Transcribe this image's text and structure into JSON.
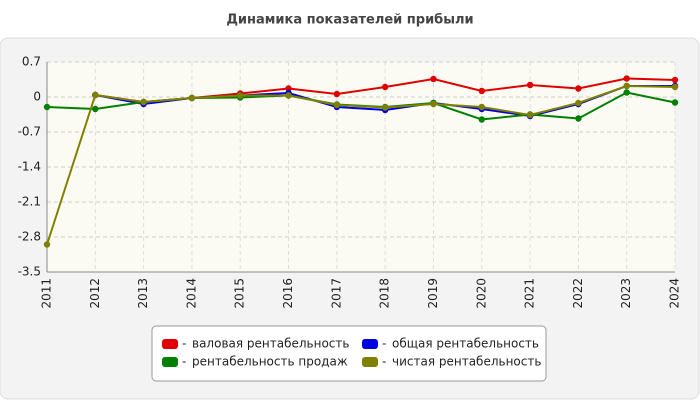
{
  "chart_data": {
    "type": "line",
    "title": "Динамика показателей прибыли",
    "categories": [
      "2011",
      "2012",
      "2013",
      "2014",
      "2015",
      "2016",
      "2017",
      "2018",
      "2019",
      "2020",
      "2021",
      "2022",
      "2023",
      "2024"
    ],
    "ylim": [
      -3.5,
      0.7
    ],
    "yticks": [
      0.7,
      0,
      -0.7,
      -1.4,
      -2.1,
      -2.8,
      -3.5
    ],
    "grid": true,
    "legend": "bottom",
    "series": [
      {
        "name": "валовая рентабельность",
        "color": "#e00000",
        "values": [
          null,
          0.04,
          -0.1,
          -0.02,
          0.07,
          0.17,
          0.06,
          0.2,
          0.36,
          0.12,
          0.24,
          0.17,
          0.37,
          0.34
        ]
      },
      {
        "name": "общая рентабельность",
        "color": "#0000e0",
        "values": [
          null,
          0.04,
          -0.14,
          -0.02,
          0.03,
          0.08,
          -0.2,
          -0.26,
          -0.12,
          -0.24,
          -0.38,
          -0.14,
          0.22,
          0.22
        ]
      },
      {
        "name": "рентабельность продаж",
        "color": "#008000",
        "values": [
          -0.2,
          -0.24,
          -0.1,
          -0.02,
          -0.01,
          0.03,
          -0.15,
          -0.2,
          -0.12,
          -0.45,
          -0.35,
          -0.43,
          0.09,
          -0.11
        ]
      },
      {
        "name": "чистая рентабельность",
        "color": "#808000",
        "values": [
          -2.95,
          0.04,
          -0.1,
          -0.02,
          0.03,
          0.03,
          -0.16,
          -0.21,
          -0.14,
          -0.2,
          -0.36,
          -0.12,
          0.22,
          0.2
        ]
      }
    ]
  }
}
